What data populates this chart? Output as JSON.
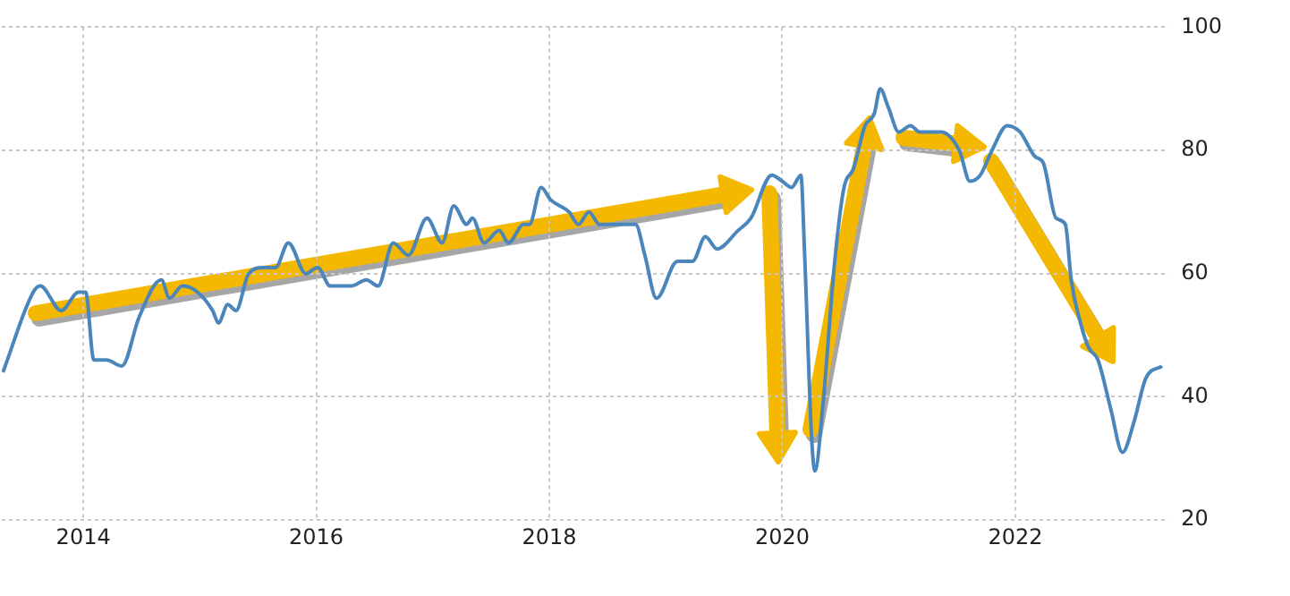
{
  "chart_data": {
    "type": "line",
    "x": [
      2013.31,
      2013.57,
      2013.63,
      2013.81,
      2013.96,
      2014.02,
      2014.09,
      2014.2,
      2014.33,
      2014.48,
      2014.67,
      2014.74,
      2014.85,
      2014.98,
      2015.11,
      2015.16,
      2015.24,
      2015.31,
      2015.42,
      2015.55,
      2015.65,
      2015.76,
      2015.91,
      2016.01,
      2016.12,
      2016.3,
      2016.43,
      2016.53,
      2016.66,
      2016.79,
      2016.95,
      2017.08,
      2017.18,
      2017.29,
      2017.34,
      2017.44,
      2017.57,
      2017.65,
      2017.78,
      2017.83,
      2017.93,
      2018.01,
      2018.17,
      2018.25,
      2018.34,
      2018.43,
      2018.74,
      2018.82,
      2018.92,
      2019.1,
      2019.23,
      2019.34,
      2019.44,
      2019.62,
      2019.73,
      2019.91,
      2020.0,
      2020.08,
      2020.16,
      2020.19,
      2020.25,
      2020.28,
      2020.35,
      2020.45,
      2020.53,
      2020.61,
      2020.71,
      2020.79,
      2020.84,
      2020.91,
      2021.0,
      2021.1,
      2021.18,
      2021.29,
      2021.36,
      2021.52,
      2021.61,
      2021.7,
      2021.8,
      2021.93,
      2022.04,
      2022.17,
      2022.24,
      2022.35,
      2022.43,
      2022.48,
      2022.56,
      2022.63,
      2022.71,
      2022.82,
      2022.92,
      2023.02,
      2023.12,
      2023.26
    ],
    "series": [
      {
        "color": "#4a86bb",
        "values": [
          44,
          57,
          58,
          54,
          57,
          57,
          46,
          46,
          45,
          53,
          59,
          56,
          58,
          57,
          54,
          52,
          55,
          54,
          60,
          61,
          61,
          65,
          60,
          61,
          58,
          58,
          59,
          58,
          65,
          63,
          69,
          65,
          71,
          68,
          69,
          65,
          67,
          65,
          68,
          68,
          74,
          72,
          70,
          68,
          70,
          68,
          68,
          63,
          56,
          62,
          62,
          66,
          64,
          67,
          69,
          76,
          75,
          74,
          76,
          64,
          34,
          28,
          39,
          62,
          74,
          77,
          84,
          86,
          90,
          87,
          83,
          84,
          83,
          83,
          83,
          80,
          75,
          76,
          80,
          84,
          83,
          79,
          78,
          69,
          68,
          59,
          52,
          48,
          46,
          38,
          31,
          36,
          43,
          45
        ]
      }
    ],
    "xlim": [
      2013.3,
      2023.3
    ],
    "xticks": [
      2014,
      2016,
      2018,
      2020,
      2022
    ],
    "ylim": [
      20,
      100
    ],
    "yticks": [
      20,
      40,
      60,
      80,
      100
    ],
    "grid": true,
    "legend": false
  }
}
